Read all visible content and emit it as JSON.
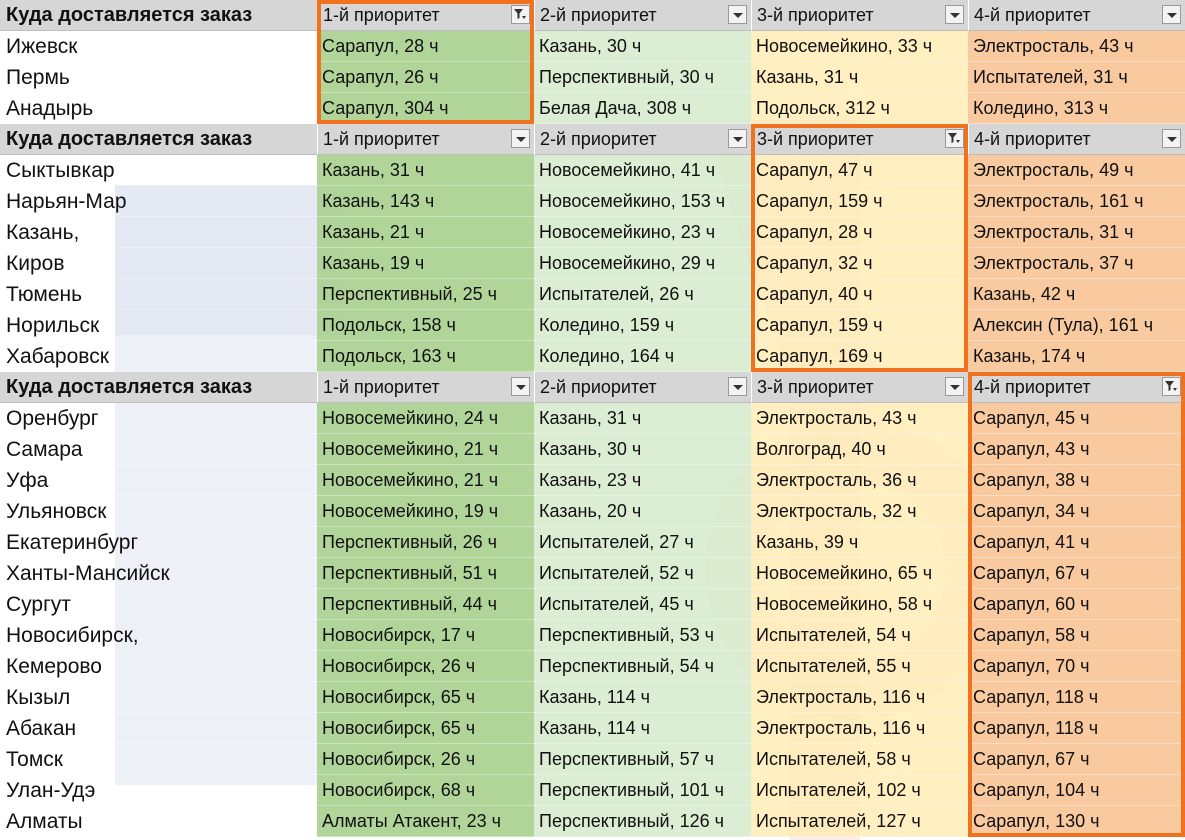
{
  "tables": [
    {
      "headers": [
        "Куда доставляется заказ",
        "1-й приоритет",
        "2-й приоритет",
        "3-й приоритет",
        "4-й приоритет"
      ],
      "filtered_column": 1,
      "rows": [
        [
          "Ижевск",
          "Сарапул, 28 ч",
          "Казань, 30 ч",
          "Новосемейкино, 33 ч",
          "Электросталь, 43 ч"
        ],
        [
          "Пермь",
          "Сарапул, 26 ч",
          "Перспективный, 30 ч",
          "Казань, 31 ч",
          "Испытателей, 31 ч"
        ],
        [
          "Анадырь",
          "Сарапул, 304 ч",
          "Белая Дача, 308 ч",
          "Подольск, 312 ч",
          "Коледино, 313 ч"
        ]
      ]
    },
    {
      "headers": [
        "Куда доставляется заказ",
        "1-й приоритет",
        "2-й приоритет",
        "3-й приоритет",
        "4-й приоритет"
      ],
      "filtered_column": 3,
      "rows": [
        [
          "Сыктывкар",
          "Казань, 31 ч",
          "Новосемейкино, 41 ч",
          "Сарапул, 47 ч",
          "Электросталь, 49 ч"
        ],
        [
          "Нарьян-Мар",
          "Казань, 143 ч",
          "Новосемейкино, 153 ч",
          "Сарапул, 159 ч",
          "Электросталь, 161 ч"
        ],
        [
          "Казань,",
          "Казань, 21 ч",
          "Новосемейкино, 23 ч",
          "Сарапул, 28 ч",
          "Электросталь, 31 ч"
        ],
        [
          "Киров",
          "Казань, 19 ч",
          "Новосемейкино, 29 ч",
          "Сарапул, 32 ч",
          "Электросталь, 37 ч"
        ],
        [
          "Тюмень",
          "Перспективный, 25 ч",
          "Испытателей, 26 ч",
          "Сарапул, 40 ч",
          "Казань, 42 ч"
        ],
        [
          "Норильск",
          "Подольск, 158 ч",
          "Коледино, 159 ч",
          "Сарапул, 159 ч",
          "Алексин (Тула), 161 ч"
        ],
        [
          "Хабаровск",
          "Подольск, 163 ч",
          "Коледино, 164 ч",
          "Сарапул, 169 ч",
          "Казань, 174 ч"
        ]
      ]
    },
    {
      "headers": [
        "Куда доставляется заказ",
        "1-й приоритет",
        "2-й приоритет",
        "3-й приоритет",
        "4-й приоритет"
      ],
      "filtered_column": 4,
      "rows": [
        [
          "Оренбург",
          "Новосемейкино, 24 ч",
          "Казань, 31 ч",
          "Электросталь, 43 ч",
          "Сарапул, 45 ч"
        ],
        [
          "Самара",
          "Новосемейкино, 21 ч",
          "Казань, 30 ч",
          "Волгоград, 40 ч",
          "Сарапул, 43 ч"
        ],
        [
          "Уфа",
          "Новосемейкино, 21 ч",
          "Казань, 23 ч",
          "Электросталь, 36 ч",
          "Сарапул, 38 ч"
        ],
        [
          "Ульяновск",
          "Новосемейкино, 19 ч",
          "Казань, 20 ч",
          "Электросталь, 32 ч",
          "Сарапул, 34 ч"
        ],
        [
          "Екатеринбург",
          "Перспективный, 26 ч",
          "Испытателей, 27 ч",
          "Казань, 39 ч",
          "Сарапул, 41 ч"
        ],
        [
          "Ханты-Мансийск",
          "Перспективный, 51 ч",
          "Испытателей, 52 ч",
          "Новосемейкино, 65 ч",
          "Сарапул, 67 ч"
        ],
        [
          "Сургут",
          "Перспективный, 44 ч",
          "Испытателей, 45 ч",
          "Новосемейкино, 58 ч",
          "Сарапул, 60 ч"
        ],
        [
          "Новосибирск,",
          "Новосибирск, 17 ч",
          "Перспективный, 53 ч",
          "Испытателей, 54 ч",
          "Сарапул, 58 ч"
        ],
        [
          "Кемерово",
          "Новосибирск, 26 ч",
          "Перспективный, 54 ч",
          "Испытателей, 55 ч",
          "Сарапул, 70 ч"
        ],
        [
          "Кызыл",
          "Новосибирск, 65 ч",
          "Казань, 114 ч",
          "Электросталь, 116 ч",
          "Сарапул, 118 ч"
        ],
        [
          "Абакан",
          "Новосибирск, 65 ч",
          "Казань, 114 ч",
          "Электросталь, 116 ч",
          "Сарапул, 118 ч"
        ],
        [
          "Томск",
          "Новосибирск, 26 ч",
          "Перспективный, 57 ч",
          "Испытателей, 58 ч",
          "Сарапул, 67 ч"
        ],
        [
          "Улан-Удэ",
          "Новосибирск, 68 ч",
          "Перспективный, 101 ч",
          "Испытателей, 102 ч",
          "Сарапул, 104 ч"
        ],
        [
          "Алматы",
          "Алматы Атакент, 23 ч",
          "Перспективный, 126 ч",
          "Испытателей, 127 ч",
          "Сарапул, 130 ч"
        ]
      ]
    }
  ],
  "colors": {
    "priority1": "#a9d08e",
    "priority2": "#d6eacc",
    "priority3": "#ffecb6",
    "priority4": "#f8c496",
    "header": "#d6d6d6",
    "highlight_border": "#f0721e"
  },
  "icons": {
    "dropdown": "dropdown-arrow-icon",
    "filter": "filter-active-icon"
  }
}
